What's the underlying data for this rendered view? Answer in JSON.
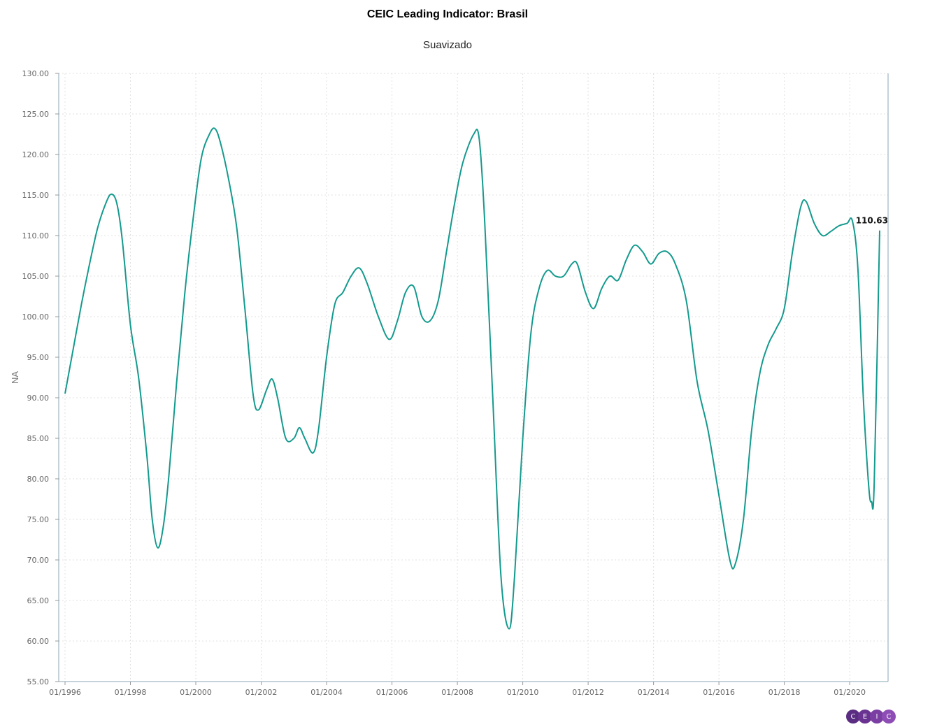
{
  "header": {
    "title": "CEIC Leading Indicator: Brasil",
    "subtitle": "Suavizado"
  },
  "logo": {
    "letters": [
      "C",
      "E",
      "I",
      "C"
    ],
    "colors": [
      "#5b2d82",
      "#6a3391",
      "#7b3fa3",
      "#8e4db5"
    ]
  },
  "chart_data": {
    "type": "line",
    "ylabel": "NA",
    "ylim": [
      55,
      130
    ],
    "yticks": [
      "55.00",
      "60.00",
      "65.00",
      "70.00",
      "75.00",
      "80.00",
      "85.00",
      "90.00",
      "95.00",
      "100.00",
      "105.00",
      "110.00",
      "115.00",
      "120.00",
      "125.00",
      "130.00"
    ],
    "xticks": [
      "01/1996",
      "01/1998",
      "01/2000",
      "01/2002",
      "01/2004",
      "01/2006",
      "01/2008",
      "01/2010",
      "01/2012",
      "01/2014",
      "01/2016",
      "01/2018",
      "01/2020"
    ],
    "x_start": "1996-01",
    "x_end": "2020-12",
    "grid": true,
    "color": "#149a8e",
    "last_value_label": "110.63",
    "series": [
      {
        "points": [
          [
            "1996-01",
            90.5
          ],
          [
            "1996-04",
            96.0
          ],
          [
            "1996-07",
            101.5
          ],
          [
            "1996-10",
            106.5
          ],
          [
            "1997-01",
            111.0
          ],
          [
            "1997-04",
            114.0
          ],
          [
            "1997-06",
            115.1
          ],
          [
            "1997-08",
            114.0
          ],
          [
            "1997-10",
            109.5
          ],
          [
            "1998-01",
            99.0
          ],
          [
            "1998-04",
            92.5
          ],
          [
            "1998-07",
            83.0
          ],
          [
            "1998-09",
            75.0
          ],
          [
            "1998-11",
            71.5
          ],
          [
            "1999-01",
            74.0
          ],
          [
            "1999-03",
            80.0
          ],
          [
            "1999-06",
            92.0
          ],
          [
            "1999-09",
            103.0
          ],
          [
            "1999-12",
            112.0
          ],
          [
            "2000-03",
            119.5
          ],
          [
            "2000-06",
            122.5
          ],
          [
            "2000-08",
            123.2
          ],
          [
            "2000-10",
            121.5
          ],
          [
            "2001-01",
            117.0
          ],
          [
            "2001-04",
            111.0
          ],
          [
            "2001-07",
            101.0
          ],
          [
            "2001-10",
            90.5
          ],
          [
            "2001-12",
            88.5
          ],
          [
            "2002-03",
            91.0
          ],
          [
            "2002-05",
            92.3
          ],
          [
            "2002-07",
            90.0
          ],
          [
            "2002-10",
            85.0
          ],
          [
            "2003-01",
            85.0
          ],
          [
            "2003-03",
            86.3
          ],
          [
            "2003-05",
            85.0
          ],
          [
            "2003-08",
            83.2
          ],
          [
            "2003-10",
            86.0
          ],
          [
            "2004-01",
            95.0
          ],
          [
            "2004-04",
            101.5
          ],
          [
            "2004-07",
            103.0
          ],
          [
            "2004-10",
            105.0
          ],
          [
            "2005-01",
            106.0
          ],
          [
            "2005-04",
            104.0
          ],
          [
            "2005-08",
            100.0
          ],
          [
            "2005-12",
            97.2
          ],
          [
            "2006-03",
            99.5
          ],
          [
            "2006-06",
            103.0
          ],
          [
            "2006-09",
            103.7
          ],
          [
            "2006-12",
            100.0
          ],
          [
            "2007-03",
            99.5
          ],
          [
            "2007-06",
            102.0
          ],
          [
            "2007-09",
            108.0
          ],
          [
            "2007-12",
            114.0
          ],
          [
            "2008-03",
            119.0
          ],
          [
            "2008-07",
            122.5
          ],
          [
            "2008-09",
            122.0
          ],
          [
            "2008-11",
            112.0
          ],
          [
            "2009-02",
            90.0
          ],
          [
            "2009-05",
            68.0
          ],
          [
            "2009-08",
            61.5
          ],
          [
            "2009-10",
            68.0
          ],
          [
            "2010-01",
            85.0
          ],
          [
            "2010-04",
            98.0
          ],
          [
            "2010-07",
            103.5
          ],
          [
            "2010-10",
            105.7
          ],
          [
            "2011-01",
            105.0
          ],
          [
            "2011-04",
            105.0
          ],
          [
            "2011-07",
            106.5
          ],
          [
            "2011-09",
            106.5
          ],
          [
            "2011-12",
            103.0
          ],
          [
            "2012-03",
            101.0
          ],
          [
            "2012-06",
            103.5
          ],
          [
            "2012-09",
            105.0
          ],
          [
            "2012-12",
            104.5
          ],
          [
            "2013-03",
            107.0
          ],
          [
            "2013-06",
            108.8
          ],
          [
            "2013-09",
            108.0
          ],
          [
            "2013-12",
            106.5
          ],
          [
            "2014-03",
            107.8
          ],
          [
            "2014-06",
            108.0
          ],
          [
            "2014-09",
            106.5
          ],
          [
            "2015-01",
            102.0
          ],
          [
            "2015-05",
            92.0
          ],
          [
            "2015-09",
            86.0
          ],
          [
            "2016-01",
            78.0
          ],
          [
            "2016-05",
            70.0
          ],
          [
            "2016-07",
            69.5
          ],
          [
            "2016-10",
            75.0
          ],
          [
            "2017-01",
            86.0
          ],
          [
            "2017-04",
            93.0
          ],
          [
            "2017-07",
            96.5
          ],
          [
            "2017-10",
            98.5
          ],
          [
            "2018-01",
            101.0
          ],
          [
            "2018-04",
            108.0
          ],
          [
            "2018-07",
            113.5
          ],
          [
            "2018-09",
            114.2
          ],
          [
            "2018-12",
            111.5
          ],
          [
            "2019-03",
            110.0
          ],
          [
            "2019-06",
            110.5
          ],
          [
            "2019-09",
            111.2
          ],
          [
            "2019-12",
            111.5
          ],
          [
            "2020-02",
            111.8
          ],
          [
            "2020-04",
            106.0
          ],
          [
            "2020-06",
            90.0
          ],
          [
            "2020-08",
            79.0
          ],
          [
            "2020-09",
            77.2
          ],
          [
            "2020-10",
            79.5
          ],
          [
            "2020-12",
            110.63
          ]
        ]
      }
    ]
  }
}
